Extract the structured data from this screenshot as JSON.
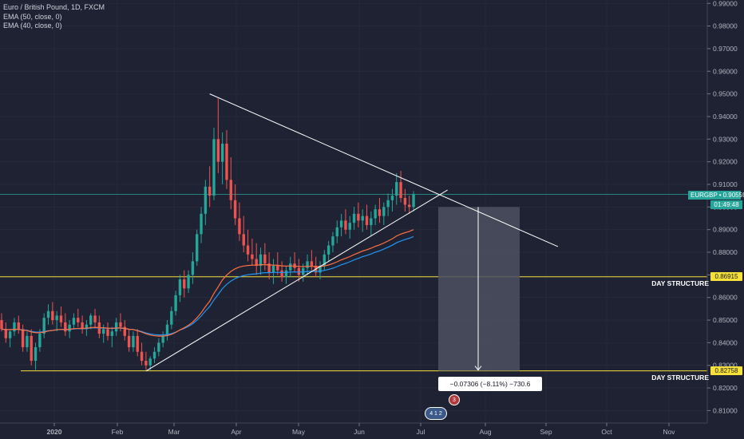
{
  "legend": {
    "title": "Euro / British Pound, 1D, FXCM",
    "ema1": "EMA (50, close, 0)",
    "ema2": "EMA (40, close, 0)"
  },
  "symbol": {
    "ticker": "EURGBP",
    "price": "0.90559",
    "countdown": "01:49:48",
    "color": "#26a69a"
  },
  "levels": [
    {
      "label": "DAY STRUCTURE",
      "price": 0.86915,
      "price_text": "0.86915",
      "color": "#f7e03a"
    },
    {
      "label": "DAY STRUCTURE",
      "price": 0.82758,
      "price_text": "0.82758",
      "color": "#f7e03a"
    }
  ],
  "measure": {
    "text": "−0.07306 (−8.11%) −730.6",
    "top_price": 0.9,
    "bottom_price": 0.82758
  },
  "events": {
    "badge_top": "3",
    "badge_bottom": "4 1 2"
  },
  "chart_data": {
    "type": "candlestick",
    "y_axis_ticks": [
      "0.99000",
      "0.98000",
      "0.97000",
      "0.96000",
      "0.95000",
      "0.94000",
      "0.93000",
      "0.92000",
      "0.91000",
      "0.90000",
      "0.89000",
      "0.88000",
      "0.87000",
      "0.86000",
      "0.85000",
      "0.84000",
      "0.83000",
      "0.82000",
      "0.81000"
    ],
    "ylim": [
      0.8045,
      0.9915
    ],
    "x_axis_ticks": [
      "2020",
      "Feb",
      "Mar",
      "Apr",
      "May",
      "Jun",
      "Jul",
      "Aug",
      "Sep",
      "Oct",
      "Nov"
    ],
    "colors": {
      "up": "#26a69a",
      "down": "#ef5350",
      "ema50": "#2196f3",
      "ema40": "#ff7043",
      "trendline": "#ffffff",
      "measure_box": "#4c5060"
    },
    "ohlc": [
      [
        0.85,
        0.853,
        0.845,
        0.846
      ],
      [
        0.846,
        0.849,
        0.84,
        0.842
      ],
      [
        0.842,
        0.846,
        0.838,
        0.845
      ],
      [
        0.845,
        0.851,
        0.843,
        0.849
      ],
      [
        0.849,
        0.852,
        0.844,
        0.846
      ],
      [
        0.846,
        0.848,
        0.836,
        0.838
      ],
      [
        0.838,
        0.845,
        0.836,
        0.843
      ],
      [
        0.843,
        0.846,
        0.83,
        0.832
      ],
      [
        0.832,
        0.84,
        0.828,
        0.838
      ],
      [
        0.838,
        0.846,
        0.836,
        0.844
      ],
      [
        0.844,
        0.853,
        0.842,
        0.851
      ],
      [
        0.851,
        0.857,
        0.848,
        0.854
      ],
      [
        0.854,
        0.858,
        0.848,
        0.85
      ],
      [
        0.85,
        0.854,
        0.845,
        0.852
      ],
      [
        0.852,
        0.856,
        0.847,
        0.849
      ],
      [
        0.849,
        0.853,
        0.843,
        0.845
      ],
      [
        0.845,
        0.85,
        0.842,
        0.848
      ],
      [
        0.848,
        0.853,
        0.846,
        0.851
      ],
      [
        0.851,
        0.855,
        0.847,
        0.849
      ],
      [
        0.849,
        0.852,
        0.844,
        0.846
      ],
      [
        0.846,
        0.85,
        0.843,
        0.848
      ],
      [
        0.848,
        0.853,
        0.846,
        0.852
      ],
      [
        0.852,
        0.855,
        0.847,
        0.849
      ],
      [
        0.849,
        0.852,
        0.842,
        0.844
      ],
      [
        0.844,
        0.848,
        0.84,
        0.846
      ],
      [
        0.846,
        0.849,
        0.841,
        0.843
      ],
      [
        0.843,
        0.847,
        0.838,
        0.845
      ],
      [
        0.845,
        0.851,
        0.843,
        0.849
      ],
      [
        0.849,
        0.853,
        0.845,
        0.847
      ],
      [
        0.847,
        0.85,
        0.841,
        0.843
      ],
      [
        0.843,
        0.846,
        0.836,
        0.838
      ],
      [
        0.838,
        0.845,
        0.836,
        0.843
      ],
      [
        0.843,
        0.846,
        0.834,
        0.836
      ],
      [
        0.836,
        0.84,
        0.83,
        0.832
      ],
      [
        0.832,
        0.836,
        0.828,
        0.83
      ],
      [
        0.83,
        0.834,
        0.828,
        0.833
      ],
      [
        0.833,
        0.838,
        0.831,
        0.836
      ],
      [
        0.836,
        0.842,
        0.834,
        0.84
      ],
      [
        0.84,
        0.845,
        0.838,
        0.843
      ],
      [
        0.843,
        0.85,
        0.841,
        0.848
      ],
      [
        0.848,
        0.856,
        0.846,
        0.854
      ],
      [
        0.854,
        0.863,
        0.852,
        0.861
      ],
      [
        0.861,
        0.87,
        0.858,
        0.868
      ],
      [
        0.868,
        0.872,
        0.86,
        0.864
      ],
      [
        0.864,
        0.872,
        0.862,
        0.87
      ],
      [
        0.87,
        0.88,
        0.866,
        0.876
      ],
      [
        0.876,
        0.89,
        0.874,
        0.888
      ],
      [
        0.888,
        0.9,
        0.884,
        0.897
      ],
      [
        0.897,
        0.912,
        0.892,
        0.909
      ],
      [
        0.909,
        0.918,
        0.9,
        0.905
      ],
      [
        0.905,
        0.935,
        0.903,
        0.93
      ],
      [
        0.93,
        0.948,
        0.915,
        0.92
      ],
      [
        0.92,
        0.933,
        0.91,
        0.928
      ],
      [
        0.928,
        0.934,
        0.908,
        0.912
      ],
      [
        0.912,
        0.922,
        0.899,
        0.903
      ],
      [
        0.903,
        0.91,
        0.892,
        0.895
      ],
      [
        0.895,
        0.902,
        0.885,
        0.888
      ],
      [
        0.888,
        0.896,
        0.88,
        0.883
      ],
      [
        0.883,
        0.89,
        0.876,
        0.879
      ],
      [
        0.879,
        0.886,
        0.874,
        0.877
      ],
      [
        0.877,
        0.884,
        0.87,
        0.874
      ],
      [
        0.874,
        0.882,
        0.87,
        0.879
      ],
      [
        0.879,
        0.884,
        0.872,
        0.875
      ],
      [
        0.875,
        0.88,
        0.868,
        0.871
      ],
      [
        0.871,
        0.877,
        0.866,
        0.874
      ],
      [
        0.874,
        0.88,
        0.87,
        0.872
      ],
      [
        0.872,
        0.876,
        0.867,
        0.869
      ],
      [
        0.869,
        0.874,
        0.866,
        0.872
      ],
      [
        0.872,
        0.878,
        0.869,
        0.875
      ],
      [
        0.875,
        0.88,
        0.871,
        0.873
      ],
      [
        0.873,
        0.877,
        0.867,
        0.87
      ],
      [
        0.87,
        0.875,
        0.867,
        0.873
      ],
      [
        0.873,
        0.879,
        0.87,
        0.876
      ],
      [
        0.876,
        0.881,
        0.872,
        0.874
      ],
      [
        0.874,
        0.878,
        0.869,
        0.871
      ],
      [
        0.871,
        0.876,
        0.868,
        0.874
      ],
      [
        0.874,
        0.881,
        0.872,
        0.879
      ],
      [
        0.879,
        0.885,
        0.876,
        0.883
      ],
      [
        0.883,
        0.889,
        0.88,
        0.887
      ],
      [
        0.887,
        0.894,
        0.884,
        0.891
      ],
      [
        0.891,
        0.897,
        0.887,
        0.894
      ],
      [
        0.894,
        0.899,
        0.888,
        0.89
      ],
      [
        0.89,
        0.896,
        0.886,
        0.893
      ],
      [
        0.893,
        0.9,
        0.89,
        0.897
      ],
      [
        0.897,
        0.902,
        0.891,
        0.894
      ],
      [
        0.894,
        0.899,
        0.889,
        0.896
      ],
      [
        0.896,
        0.901,
        0.89,
        0.892
      ],
      [
        0.892,
        0.898,
        0.887,
        0.895
      ],
      [
        0.895,
        0.901,
        0.892,
        0.899
      ],
      [
        0.899,
        0.904,
        0.893,
        0.896
      ],
      [
        0.896,
        0.902,
        0.892,
        0.9
      ],
      [
        0.9,
        0.906,
        0.896,
        0.903
      ],
      [
        0.903,
        0.908,
        0.898,
        0.905
      ],
      [
        0.905,
        0.915,
        0.901,
        0.911
      ],
      [
        0.911,
        0.916,
        0.902,
        0.904
      ],
      [
        0.904,
        0.908,
        0.898,
        0.901
      ],
      [
        0.901,
        0.905,
        0.897,
        0.9
      ],
      [
        0.9,
        0.907,
        0.898,
        0.9056
      ]
    ],
    "trendlines": [
      {
        "name": "descending-resistance",
        "from": {
          "bar": 49,
          "price": 0.95
        },
        "to": {
          "bar": 131,
          "price": 0.8825
        }
      },
      {
        "name": "ascending-support",
        "from": {
          "bar": 34,
          "price": 0.8275
        },
        "to": {
          "bar": 105,
          "price": 0.9075
        }
      }
    ]
  }
}
